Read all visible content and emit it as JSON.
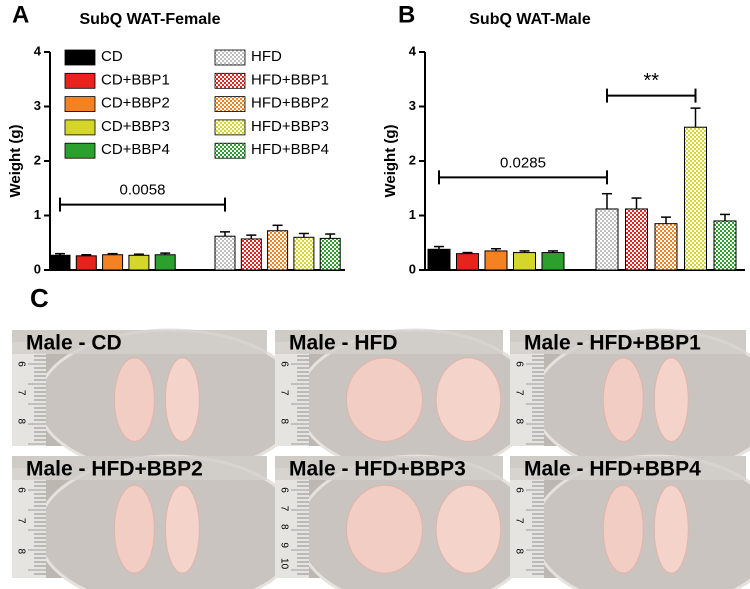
{
  "chart_data": [
    {
      "type": "bar",
      "panel": "A",
      "title": "SubQ WAT-Female",
      "y_label": "Weight (g)",
      "categories": [
        "CD",
        "CD+BBP1",
        "CD+BBP2",
        "CD+BBP3",
        "CD+BBP4",
        "HFD",
        "HFD+BBP1",
        "HFD+BBP2",
        "HFD+BBP3",
        "HFD+BBP4"
      ],
      "values": [
        0.27,
        0.26,
        0.28,
        0.27,
        0.28,
        0.62,
        0.57,
        0.72,
        0.6,
        0.58
      ],
      "errors": [
        0.03,
        0.02,
        0.02,
        0.02,
        0.03,
        0.08,
        0.07,
        0.1,
        0.07,
        0.08
      ],
      "colors": [
        "#000000",
        "#e8231d",
        "#f58220",
        "#d4d62a",
        "#2ca02c",
        "#bfbfbf",
        "#e8231d",
        "#f58220",
        "#d4d62a",
        "#2ca02c"
      ],
      "fill_styles": [
        "solid",
        "solid",
        "solid",
        "solid",
        "solid",
        "checker",
        "checker",
        "checker",
        "checker",
        "checker"
      ],
      "ylim": [
        0,
        4
      ],
      "yticks": [
        0,
        1,
        2,
        3,
        4
      ],
      "legend": true,
      "annotations": [
        {
          "label": "0.0058",
          "y": 1.2,
          "from": "CD",
          "to": "HFD"
        }
      ]
    },
    {
      "type": "bar",
      "panel": "B",
      "title": "SubQ WAT-Male",
      "y_label": "Weight (g)",
      "categories": [
        "CD",
        "CD+BBP1",
        "CD+BBP2",
        "CD+BBP3",
        "CD+BBP4",
        "HFD",
        "HFD+BBP1",
        "HFD+BBP2",
        "HFD+BBP3",
        "HFD+BBP4"
      ],
      "values": [
        0.38,
        0.3,
        0.35,
        0.32,
        0.32,
        1.12,
        1.12,
        0.85,
        2.62,
        0.9
      ],
      "errors": [
        0.05,
        0.02,
        0.04,
        0.03,
        0.03,
        0.28,
        0.2,
        0.12,
        0.35,
        0.12
      ],
      "colors": [
        "#000000",
        "#e8231d",
        "#f58220",
        "#d4d62a",
        "#2ca02c",
        "#bfbfbf",
        "#e8231d",
        "#f58220",
        "#d4d62a",
        "#2ca02c"
      ],
      "fill_styles": [
        "solid",
        "solid",
        "solid",
        "solid",
        "solid",
        "checker",
        "checker",
        "checker",
        "checker",
        "checker"
      ],
      "ylim": [
        0,
        4
      ],
      "yticks": [
        0,
        1,
        2,
        3,
        4
      ],
      "legend": false,
      "annotations": [
        {
          "label": "0.0285",
          "y": 1.7,
          "from": "CD",
          "to": "HFD"
        },
        {
          "label": "**",
          "y": 3.2,
          "from": "HFD",
          "to": "HFD+BBP3"
        }
      ]
    }
  ],
  "panel_c": {
    "label": "C",
    "photos": [
      {
        "label": "Male - CD",
        "ruler": [
          "6",
          "7",
          "8"
        ]
      },
      {
        "label": "Male - HFD",
        "ruler": [
          "6",
          "7",
          "8"
        ]
      },
      {
        "label": "Male - HFD+BBP1",
        "ruler": [
          "6",
          "7",
          "8"
        ]
      },
      {
        "label": "Male - HFD+BBP2",
        "ruler": [
          "6",
          "7",
          "8"
        ]
      },
      {
        "label": "Male - HFD+BBP3",
        "ruler": [
          "6",
          "7",
          "8",
          "9",
          "10"
        ]
      },
      {
        "label": "Male - HFD+BBP4",
        "ruler": [
          "6",
          "7",
          "8"
        ]
      }
    ]
  }
}
